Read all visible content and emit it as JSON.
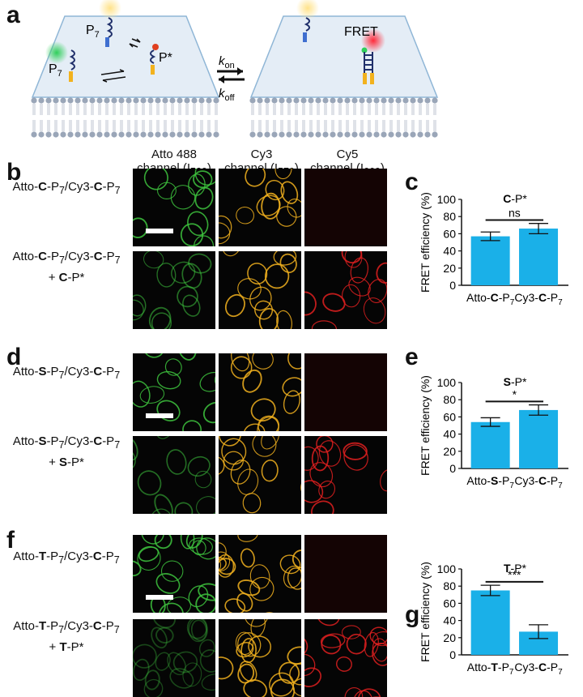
{
  "panels": {
    "a": "a",
    "b": "b",
    "c": "c",
    "d": "d",
    "e": "e",
    "f": "f",
    "g": "g"
  },
  "schematic": {
    "p7_top": "P",
    "p7_left": "P",
    "p7_sub": "7",
    "pstar": "P*",
    "fret": "FRET",
    "kon": "k",
    "kon_sub": "on",
    "koff": "k",
    "koff_sub": "off"
  },
  "channels": [
    {
      "name": "Atto 488",
      "sub_prefix": "channel (I",
      "sub": "520",
      "sub_suffix": ")"
    },
    {
      "name": "Cy3",
      "sub_prefix": "channel (I",
      "sub": "570",
      "sub_suffix": ")"
    },
    {
      "name": "Cy5",
      "sub_prefix": "channel (I",
      "sub": "660",
      "sub_suffix": ")"
    }
  ],
  "rows": [
    {
      "letter": "C",
      "extra": ""
    },
    {
      "letter": "C",
      "extra": "C"
    },
    {
      "letter": "S",
      "extra": ""
    },
    {
      "letter": "S",
      "extra": "S"
    },
    {
      "letter": "T",
      "extra": ""
    },
    {
      "letter": "T",
      "extra": "T"
    }
  ],
  "row_text": {
    "atto": "Atto-",
    "p7": "-P",
    "sub7": "7",
    "slash_cy3": "/Cy3-",
    "c": "C",
    "plus": "+ ",
    "pstar": "-P*"
  },
  "colors": {
    "bar": "#1ab0e8",
    "green": "#3ec43e",
    "yellow": "#f2b21e",
    "red": "#e02020"
  },
  "chart_data": [
    {
      "type": "bar",
      "title": "C-P*",
      "ylabel": "FRET efficiency (%)",
      "categories": [
        "Atto-C-P7",
        "Cy3-C-P7"
      ],
      "values": [
        57,
        66
      ],
      "errors": [
        5,
        6
      ],
      "ylim": [
        0,
        100
      ],
      "yticks": [
        0,
        20,
        40,
        60,
        80,
        100
      ],
      "significance": "ns"
    },
    {
      "type": "bar",
      "title": "S-P*",
      "ylabel": "FRET efficiency (%)",
      "categories": [
        "Atto-S-P7",
        "Cy3-C-P7"
      ],
      "values": [
        54,
        68
      ],
      "errors": [
        5,
        6
      ],
      "ylim": [
        0,
        100
      ],
      "yticks": [
        0,
        20,
        40,
        60,
        80,
        100
      ],
      "significance": "*"
    },
    {
      "type": "bar",
      "title": "T-P*",
      "ylabel": "FRET efficiency (%)",
      "categories": [
        "Atto-T-P7",
        "Cy3-C-P7"
      ],
      "values": [
        75,
        27
      ],
      "errors": [
        6,
        8
      ],
      "ylim": [
        0,
        100
      ],
      "yticks": [
        0,
        20,
        40,
        60,
        80,
        100
      ],
      "significance": "***"
    }
  ]
}
